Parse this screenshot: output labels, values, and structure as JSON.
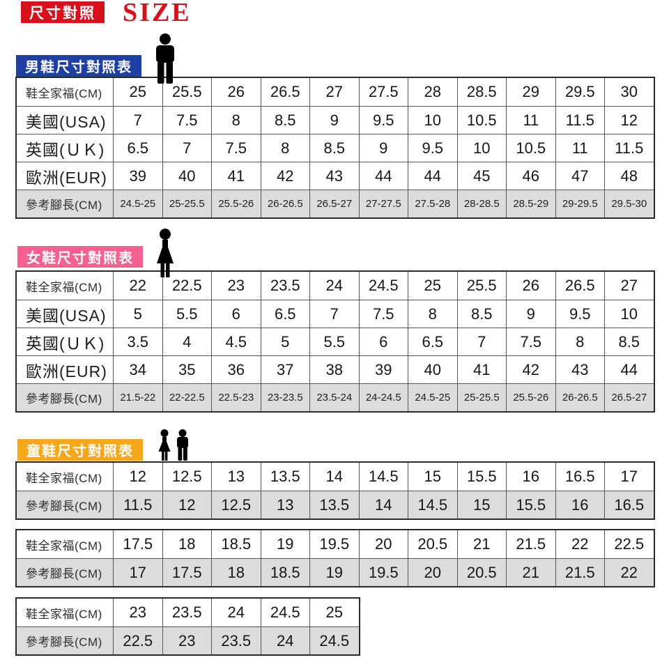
{
  "header": {
    "badge": "尺寸對照",
    "size_word": "SIZE",
    "accent": "#d7111c"
  },
  "colors": {
    "shaded_row": "#dcdcdc",
    "table_border": "#2a2a2a"
  },
  "sections": {
    "men": {
      "title": "男鞋尺寸對照表",
      "accent": "#1e3fa3",
      "icon": "man-icon",
      "tables": [
        {
          "rows": [
            {
              "label": "鞋全家福(CM)",
              "kind": "shoe-length",
              "values": [
                "25",
                "25.5",
                "26",
                "26.5",
                "27",
                "27.5",
                "28",
                "28.5",
                "29",
                "29.5",
                "30"
              ]
            },
            {
              "label": "美國(USA)",
              "kind": "region",
              "values": [
                "7",
                "7.5",
                "8",
                "8.5",
                "9",
                "9.5",
                "10",
                "10.5",
                "11",
                "11.5",
                "12"
              ]
            },
            {
              "label": "英國(ＵＫ)",
              "kind": "region",
              "values": [
                "6.5",
                "7",
                "7.5",
                "8",
                "8.5",
                "9",
                "9.5",
                "10",
                "10.5",
                "11",
                "11.5"
              ]
            },
            {
              "label": "歐洲(EUR)",
              "kind": "region",
              "values": [
                "39",
                "40",
                "41",
                "42",
                "43",
                "44",
                "44",
                "45",
                "46",
                "47",
                "48"
              ]
            },
            {
              "label": "參考腳長(CM)",
              "kind": "foot-ref",
              "shaded": true,
              "small_values": true,
              "values": [
                "24.5-25",
                "25-25.5",
                "25.5-26",
                "26-26.5",
                "26.5-27",
                "27-27.5",
                "27.5-28",
                "28-28.5",
                "28.5-29",
                "29-29.5",
                "29.5-30"
              ]
            }
          ]
        }
      ]
    },
    "women": {
      "title": "女鞋尺寸對照表",
      "accent": "#f2618f",
      "icon": "woman-icon",
      "tables": [
        {
          "rows": [
            {
              "label": "鞋全家福(CM)",
              "kind": "shoe-length",
              "values": [
                "22",
                "22.5",
                "23",
                "23.5",
                "24",
                "24.5",
                "25",
                "25.5",
                "26",
                "26.5",
                "27"
              ]
            },
            {
              "label": "美國(USA)",
              "kind": "region",
              "values": [
                "5",
                "5.5",
                "6",
                "6.5",
                "7",
                "7.5",
                "8",
                "8.5",
                "9",
                "9.5",
                "10"
              ]
            },
            {
              "label": "英國(ＵＫ)",
              "kind": "region",
              "values": [
                "3.5",
                "4",
                "4.5",
                "5",
                "5.5",
                "6",
                "6.5",
                "7",
                "7.5",
                "8",
                "8.5"
              ]
            },
            {
              "label": "歐洲(EUR)",
              "kind": "region",
              "values": [
                "34",
                "35",
                "36",
                "37",
                "38",
                "39",
                "40",
                "41",
                "42",
                "43",
                "44"
              ]
            },
            {
              "label": "參考腳長(CM)",
              "kind": "foot-ref",
              "shaded": true,
              "small_values": true,
              "values": [
                "21.5-22",
                "22-22.5",
                "22.5-23",
                "23-23.5",
                "23.5-24",
                "24-24.5",
                "24.5-25",
                "25-25.5",
                "25.5-26",
                "26-26.5",
                "26.5-27"
              ]
            }
          ]
        }
      ]
    },
    "kids": {
      "title": "童鞋尺寸對照表",
      "accent": "#f6a81c",
      "icon": "children-icon",
      "tables": [
        {
          "rows": [
            {
              "label": "鞋全家福(CM)",
              "kind": "shoe-length",
              "values": [
                "12",
                "12.5",
                "13",
                "13.5",
                "14",
                "14.5",
                "15",
                "15.5",
                "16",
                "16.5",
                "17"
              ]
            },
            {
              "label": "參考腳長(CM)",
              "kind": "foot-ref",
              "shaded": true,
              "values": [
                "11.5",
                "12",
                "12.5",
                "13",
                "13.5",
                "14",
                "14.5",
                "15",
                "15.5",
                "16",
                "16.5"
              ]
            }
          ]
        },
        {
          "rows": [
            {
              "label": "鞋全家福(CM)",
              "kind": "shoe-length",
              "values": [
                "17.5",
                "18",
                "18.5",
                "19",
                "19.5",
                "20",
                "20.5",
                "21",
                "21.5",
                "22",
                "22.5"
              ]
            },
            {
              "label": "參考腳長(CM)",
              "kind": "foot-ref",
              "shaded": true,
              "values": [
                "17",
                "17.5",
                "18",
                "18.5",
                "19",
                "19.5",
                "20",
                "20.5",
                "21",
                "21.5",
                "22"
              ]
            }
          ]
        },
        {
          "rows": [
            {
              "label": "鞋全家福(CM)",
              "kind": "shoe-length",
              "values": [
                "23",
                "23.5",
                "24",
                "24.5",
                "25"
              ]
            },
            {
              "label": "參考腳長(CM)",
              "kind": "foot-ref",
              "shaded": true,
              "values": [
                "22.5",
                "23",
                "23.5",
                "24",
                "24.5"
              ]
            }
          ]
        }
      ]
    }
  }
}
